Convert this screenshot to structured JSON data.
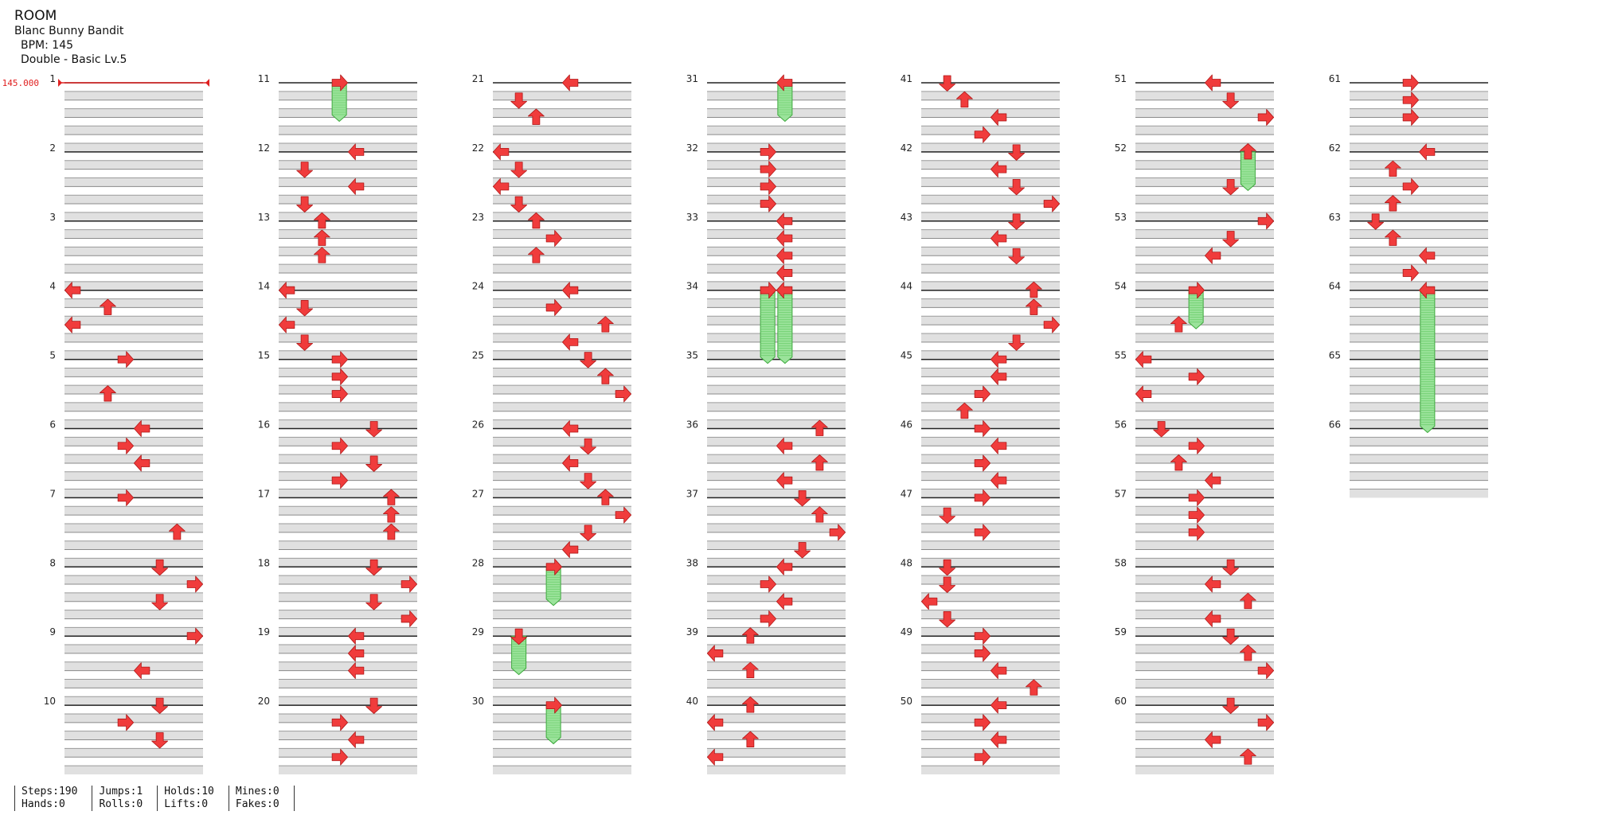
{
  "header": {
    "title": "ROOM",
    "artist": "Blanc Bunny Bandit",
    "bpm": "BPM: 145",
    "difficulty": "Double - Basic Lv.5"
  },
  "bpm_marker": "145.000",
  "stats": {
    "steps": "Steps:190",
    "hands": "Hands:0",
    "jumps": "Jumps:1",
    "rolls": "Rolls:0",
    "holds": "Holds:10",
    "lifts": "Lifts:0",
    "mines": "Mines:0",
    "fakes": "Fakes:0"
  },
  "colors": {
    "arrow": "#f03c3c",
    "arrow_edge": "#b01818",
    "hold_body": "#9be39b",
    "hold_edge": "#3aa83a",
    "row_shade": "#e0e0e0",
    "measure_line": "#222222",
    "bpm_line": "#e02020"
  },
  "measures": [
    {
      "n": "1",
      "notes": []
    },
    {
      "n": "2",
      "notes": []
    },
    {
      "n": "3",
      "notes": []
    },
    {
      "n": "4",
      "notes": [
        {
          "b": 0,
          "c": 0,
          "d": "L"
        },
        {
          "b": 1,
          "c": 2,
          "d": "U"
        },
        {
          "b": 2,
          "c": 0,
          "d": "L"
        }
      ]
    },
    {
      "n": "5",
      "notes": [
        {
          "b": 0,
          "c": 3,
          "d": "R"
        },
        {
          "b": 2,
          "c": 2,
          "d": "U"
        }
      ]
    },
    {
      "n": "6",
      "notes": [
        {
          "b": 0,
          "c": 4,
          "d": "L"
        },
        {
          "b": 1,
          "c": 3,
          "d": "R"
        },
        {
          "b": 2,
          "c": 4,
          "d": "L"
        }
      ]
    },
    {
      "n": "7",
      "notes": [
        {
          "b": 0,
          "c": 3,
          "d": "R"
        },
        {
          "b": 2,
          "c": 6,
          "d": "U"
        }
      ]
    },
    {
      "n": "8",
      "notes": [
        {
          "b": 0,
          "c": 5,
          "d": "D"
        },
        {
          "b": 1,
          "c": 7,
          "d": "R"
        },
        {
          "b": 2,
          "c": 5,
          "d": "D"
        }
      ]
    },
    {
      "n": "9",
      "notes": [
        {
          "b": 0,
          "c": 7,
          "d": "R"
        },
        {
          "b": 2,
          "c": 4,
          "d": "L"
        }
      ]
    },
    {
      "n": "10",
      "notes": [
        {
          "b": 0,
          "c": 5,
          "d": "D"
        },
        {
          "b": 1,
          "c": 3,
          "d": "R"
        },
        {
          "b": 2,
          "c": 5,
          "d": "D"
        }
      ]
    },
    {
      "n": "11",
      "notes": [
        {
          "b": 0,
          "c": 3,
          "d": "R",
          "hold": 2
        }
      ]
    },
    {
      "n": "12",
      "notes": [
        {
          "b": 0,
          "c": 4,
          "d": "L"
        },
        {
          "b": 1,
          "c": 1,
          "d": "D"
        },
        {
          "b": 2,
          "c": 4,
          "d": "L"
        },
        {
          "b": 3,
          "c": 1,
          "d": "D"
        }
      ]
    },
    {
      "n": "13",
      "notes": [
        {
          "b": 0,
          "c": 2,
          "d": "U"
        },
        {
          "b": 1,
          "c": 2,
          "d": "U"
        },
        {
          "b": 2,
          "c": 2,
          "d": "U"
        }
      ]
    },
    {
      "n": "14",
      "notes": [
        {
          "b": 0,
          "c": 0,
          "d": "L"
        },
        {
          "b": 1,
          "c": 1,
          "d": "D"
        },
        {
          "b": 2,
          "c": 0,
          "d": "L"
        },
        {
          "b": 3,
          "c": 1,
          "d": "D"
        }
      ]
    },
    {
      "n": "15",
      "notes": [
        {
          "b": 0,
          "c": 3,
          "d": "R"
        },
        {
          "b": 1,
          "c": 3,
          "d": "R"
        },
        {
          "b": 2,
          "c": 3,
          "d": "R"
        }
      ]
    },
    {
      "n": "16",
      "notes": [
        {
          "b": 0,
          "c": 5,
          "d": "D"
        },
        {
          "b": 1,
          "c": 3,
          "d": "R"
        },
        {
          "b": 2,
          "c": 5,
          "d": "D"
        },
        {
          "b": 3,
          "c": 3,
          "d": "R"
        }
      ]
    },
    {
      "n": "17",
      "notes": [
        {
          "b": 0,
          "c": 6,
          "d": "U"
        },
        {
          "b": 1,
          "c": 6,
          "d": "U"
        },
        {
          "b": 2,
          "c": 6,
          "d": "U"
        }
      ]
    },
    {
      "n": "18",
      "notes": [
        {
          "b": 0,
          "c": 5,
          "d": "D"
        },
        {
          "b": 1,
          "c": 7,
          "d": "R"
        },
        {
          "b": 2,
          "c": 5,
          "d": "D"
        },
        {
          "b": 3,
          "c": 7,
          "d": "R"
        }
      ]
    },
    {
      "n": "19",
      "notes": [
        {
          "b": 0,
          "c": 4,
          "d": "L"
        },
        {
          "b": 1,
          "c": 4,
          "d": "L"
        },
        {
          "b": 2,
          "c": 4,
          "d": "L"
        }
      ]
    },
    {
      "n": "20",
      "notes": [
        {
          "b": 0,
          "c": 5,
          "d": "D"
        },
        {
          "b": 1,
          "c": 3,
          "d": "R"
        },
        {
          "b": 2,
          "c": 4,
          "d": "L"
        },
        {
          "b": 3,
          "c": 3,
          "d": "R"
        }
      ]
    },
    {
      "n": "21",
      "notes": [
        {
          "b": 0,
          "c": 4,
          "d": "L"
        },
        {
          "b": 1,
          "c": 1,
          "d": "D"
        },
        {
          "b": 2,
          "c": 2,
          "d": "U"
        }
      ]
    },
    {
      "n": "22",
      "notes": [
        {
          "b": 0,
          "c": 0,
          "d": "L"
        },
        {
          "b": 1,
          "c": 1,
          "d": "D"
        },
        {
          "b": 2,
          "c": 0,
          "d": "L"
        },
        {
          "b": 3,
          "c": 1,
          "d": "D"
        }
      ]
    },
    {
      "n": "23",
      "notes": [
        {
          "b": 0,
          "c": 2,
          "d": "U"
        },
        {
          "b": 1,
          "c": 3,
          "d": "R"
        },
        {
          "b": 2,
          "c": 2,
          "d": "U"
        }
      ]
    },
    {
      "n": "24",
      "notes": [
        {
          "b": 0,
          "c": 4,
          "d": "L"
        },
        {
          "b": 1,
          "c": 3,
          "d": "R"
        },
        {
          "b": 2,
          "c": 6,
          "d": "U"
        },
        {
          "b": 3,
          "c": 4,
          "d": "L"
        }
      ]
    },
    {
      "n": "25",
      "notes": [
        {
          "b": 0,
          "c": 5,
          "d": "D"
        },
        {
          "b": 1,
          "c": 6,
          "d": "U"
        },
        {
          "b": 2,
          "c": 7,
          "d": "R"
        }
      ]
    },
    {
      "n": "26",
      "notes": [
        {
          "b": 0,
          "c": 4,
          "d": "L"
        },
        {
          "b": 1,
          "c": 5,
          "d": "D"
        },
        {
          "b": 2,
          "c": 4,
          "d": "L"
        },
        {
          "b": 3,
          "c": 5,
          "d": "D"
        }
      ]
    },
    {
      "n": "27",
      "notes": [
        {
          "b": 0,
          "c": 6,
          "d": "U"
        },
        {
          "b": 1,
          "c": 7,
          "d": "R"
        },
        {
          "b": 2,
          "c": 5,
          "d": "D"
        },
        {
          "b": 3,
          "c": 4,
          "d": "L"
        }
      ]
    },
    {
      "n": "28",
      "notes": [
        {
          "b": 0,
          "c": 3,
          "d": "R",
          "hold": 2
        }
      ]
    },
    {
      "n": "29",
      "notes": [
        {
          "b": 0,
          "c": 1,
          "d": "D",
          "hold": 2
        }
      ]
    },
    {
      "n": "30",
      "notes": [
        {
          "b": 0,
          "c": 3,
          "d": "R",
          "hold": 2
        }
      ]
    },
    {
      "n": "31",
      "notes": [
        {
          "b": 0,
          "c": 4,
          "d": "L",
          "hold": 2
        }
      ]
    },
    {
      "n": "32",
      "notes": [
        {
          "b": 0,
          "c": 3,
          "d": "R"
        },
        {
          "b": 1,
          "c": 3,
          "d": "R"
        },
        {
          "b": 2,
          "c": 3,
          "d": "R"
        },
        {
          "b": 3,
          "c": 3,
          "d": "R"
        }
      ]
    },
    {
      "n": "33",
      "notes": [
        {
          "b": 0,
          "c": 4,
          "d": "L"
        },
        {
          "b": 1,
          "c": 4,
          "d": "L"
        },
        {
          "b": 2,
          "c": 4,
          "d": "L"
        },
        {
          "b": 3,
          "c": 4,
          "d": "L"
        }
      ]
    },
    {
      "n": "34",
      "notes": [
        {
          "b": 0,
          "c": 3,
          "d": "R",
          "hold": 4
        },
        {
          "b": 0,
          "c": 4,
          "d": "L",
          "hold": 4
        }
      ]
    },
    {
      "n": "35",
      "notes": []
    },
    {
      "n": "36",
      "notes": [
        {
          "b": 0,
          "c": 6,
          "d": "U"
        },
        {
          "b": 1,
          "c": 4,
          "d": "L"
        },
        {
          "b": 2,
          "c": 6,
          "d": "U"
        },
        {
          "b": 3,
          "c": 4,
          "d": "L"
        }
      ]
    },
    {
      "n": "37",
      "notes": [
        {
          "b": 0,
          "c": 5,
          "d": "D"
        },
        {
          "b": 1,
          "c": 6,
          "d": "U"
        },
        {
          "b": 2,
          "c": 7,
          "d": "R"
        },
        {
          "b": 3,
          "c": 5,
          "d": "D"
        }
      ]
    },
    {
      "n": "38",
      "notes": [
        {
          "b": 0,
          "c": 4,
          "d": "L"
        },
        {
          "b": 1,
          "c": 3,
          "d": "R"
        },
        {
          "b": 2,
          "c": 4,
          "d": "L"
        },
        {
          "b": 3,
          "c": 3,
          "d": "R"
        }
      ]
    },
    {
      "n": "39",
      "notes": [
        {
          "b": 0,
          "c": 2,
          "d": "U"
        },
        {
          "b": 1,
          "c": 0,
          "d": "L"
        },
        {
          "b": 2,
          "c": 2,
          "d": "U"
        }
      ]
    },
    {
      "n": "40",
      "notes": [
        {
          "b": 0,
          "c": 2,
          "d": "U"
        },
        {
          "b": 1,
          "c": 0,
          "d": "L"
        },
        {
          "b": 2,
          "c": 2,
          "d": "U"
        },
        {
          "b": 3,
          "c": 0,
          "d": "L"
        }
      ]
    },
    {
      "n": "41",
      "notes": [
        {
          "b": 0,
          "c": 1,
          "d": "D"
        },
        {
          "b": 1,
          "c": 2,
          "d": "U"
        },
        {
          "b": 2,
          "c": 4,
          "d": "L"
        },
        {
          "b": 3,
          "c": 3,
          "d": "R"
        }
      ]
    },
    {
      "n": "42",
      "notes": [
        {
          "b": 0,
          "c": 5,
          "d": "D"
        },
        {
          "b": 1,
          "c": 4,
          "d": "L"
        },
        {
          "b": 2,
          "c": 5,
          "d": "D"
        },
        {
          "b": 3,
          "c": 7,
          "d": "R"
        }
      ]
    },
    {
      "n": "43",
      "notes": [
        {
          "b": 0,
          "c": 5,
          "d": "D"
        },
        {
          "b": 1,
          "c": 4,
          "d": "L"
        },
        {
          "b": 2,
          "c": 5,
          "d": "D"
        }
      ]
    },
    {
      "n": "44",
      "notes": [
        {
          "b": 0,
          "c": 6,
          "d": "U"
        },
        {
          "b": 1,
          "c": 6,
          "d": "U"
        },
        {
          "b": 2,
          "c": 7,
          "d": "R"
        },
        {
          "b": 3,
          "c": 5,
          "d": "D"
        }
      ]
    },
    {
      "n": "45",
      "notes": [
        {
          "b": 0,
          "c": 4,
          "d": "L"
        },
        {
          "b": 1,
          "c": 4,
          "d": "L"
        },
        {
          "b": 2,
          "c": 3,
          "d": "R"
        },
        {
          "b": 3,
          "c": 2,
          "d": "U"
        }
      ]
    },
    {
      "n": "46",
      "notes": [
        {
          "b": 0,
          "c": 3,
          "d": "R"
        },
        {
          "b": 1,
          "c": 4,
          "d": "L"
        },
        {
          "b": 2,
          "c": 3,
          "d": "R"
        },
        {
          "b": 3,
          "c": 4,
          "d": "L"
        }
      ]
    },
    {
      "n": "47",
      "notes": [
        {
          "b": 0,
          "c": 3,
          "d": "R"
        },
        {
          "b": 1,
          "c": 1,
          "d": "D"
        },
        {
          "b": 2,
          "c": 3,
          "d": "R"
        }
      ]
    },
    {
      "n": "48",
      "notes": [
        {
          "b": 0,
          "c": 1,
          "d": "D"
        },
        {
          "b": 1,
          "c": 1,
          "d": "D"
        },
        {
          "b": 2,
          "c": 0,
          "d": "L"
        },
        {
          "b": 3,
          "c": 1,
          "d": "D"
        }
      ]
    },
    {
      "n": "49",
      "notes": [
        {
          "b": 0,
          "c": 3,
          "d": "R"
        },
        {
          "b": 1,
          "c": 3,
          "d": "R"
        },
        {
          "b": 2,
          "c": 4,
          "d": "L"
        },
        {
          "b": 3,
          "c": 6,
          "d": "U"
        }
      ]
    },
    {
      "n": "50",
      "notes": [
        {
          "b": 0,
          "c": 4,
          "d": "L"
        },
        {
          "b": 1,
          "c": 3,
          "d": "R"
        },
        {
          "b": 2,
          "c": 4,
          "d": "L"
        },
        {
          "b": 3,
          "c": 3,
          "d": "R"
        }
      ]
    },
    {
      "n": "51",
      "notes": [
        {
          "b": 0,
          "c": 4,
          "d": "L"
        },
        {
          "b": 1,
          "c": 5,
          "d": "D"
        },
        {
          "b": 2,
          "c": 7,
          "d": "R"
        }
      ]
    },
    {
      "n": "52",
      "notes": [
        {
          "b": 0,
          "c": 6,
          "d": "U",
          "hold": 2
        },
        {
          "b": 2,
          "c": 5,
          "d": "D"
        }
      ]
    },
    {
      "n": "53",
      "notes": [
        {
          "b": 0,
          "c": 7,
          "d": "R"
        },
        {
          "b": 1,
          "c": 5,
          "d": "D"
        },
        {
          "b": 2,
          "c": 4,
          "d": "L"
        }
      ]
    },
    {
      "n": "54",
      "notes": [
        {
          "b": 0,
          "c": 3,
          "d": "R",
          "hold": 2
        },
        {
          "b": 2,
          "c": 2,
          "d": "U"
        }
      ]
    },
    {
      "n": "55",
      "notes": [
        {
          "b": 0,
          "c": 0,
          "d": "L"
        },
        {
          "b": 1,
          "c": 3,
          "d": "R"
        },
        {
          "b": 2,
          "c": 0,
          "d": "L"
        }
      ]
    },
    {
      "n": "56",
      "notes": [
        {
          "b": 0,
          "c": 1,
          "d": "D"
        },
        {
          "b": 1,
          "c": 3,
          "d": "R"
        },
        {
          "b": 2,
          "c": 2,
          "d": "U"
        },
        {
          "b": 3,
          "c": 4,
          "d": "L"
        }
      ]
    },
    {
      "n": "57",
      "notes": [
        {
          "b": 0,
          "c": 3,
          "d": "R"
        },
        {
          "b": 1,
          "c": 3,
          "d": "R"
        },
        {
          "b": 2,
          "c": 3,
          "d": "R"
        }
      ]
    },
    {
      "n": "58",
      "notes": [
        {
          "b": 0,
          "c": 5,
          "d": "D"
        },
        {
          "b": 1,
          "c": 4,
          "d": "L"
        },
        {
          "b": 2,
          "c": 6,
          "d": "U"
        },
        {
          "b": 3,
          "c": 4,
          "d": "L"
        }
      ]
    },
    {
      "n": "59",
      "notes": [
        {
          "b": 0,
          "c": 5,
          "d": "D"
        },
        {
          "b": 1,
          "c": 6,
          "d": "U"
        },
        {
          "b": 2,
          "c": 7,
          "d": "R"
        }
      ]
    },
    {
      "n": "60",
      "notes": [
        {
          "b": 0,
          "c": 5,
          "d": "D"
        },
        {
          "b": 1,
          "c": 7,
          "d": "R"
        },
        {
          "b": 2,
          "c": 4,
          "d": "L"
        },
        {
          "b": 3,
          "c": 6,
          "d": "U"
        }
      ]
    },
    {
      "n": "61",
      "notes": [
        {
          "b": 0,
          "c": 3,
          "d": "R"
        },
        {
          "b": 1,
          "c": 3,
          "d": "R"
        },
        {
          "b": 2,
          "c": 3,
          "d": "R"
        }
      ]
    },
    {
      "n": "62",
      "notes": [
        {
          "b": 0,
          "c": 4,
          "d": "L"
        },
        {
          "b": 1,
          "c": 2,
          "d": "U"
        },
        {
          "b": 2,
          "c": 3,
          "d": "R"
        },
        {
          "b": 3,
          "c": 2,
          "d": "U"
        }
      ]
    },
    {
      "n": "63",
      "notes": [
        {
          "b": 0,
          "c": 1,
          "d": "D"
        },
        {
          "b": 1,
          "c": 2,
          "d": "U"
        },
        {
          "b": 2,
          "c": 4,
          "d": "L"
        },
        {
          "b": 3,
          "c": 3,
          "d": "R"
        }
      ]
    },
    {
      "n": "64",
      "notes": [
        {
          "b": 0,
          "c": 4,
          "d": "L",
          "hold": 8
        }
      ]
    },
    {
      "n": "65",
      "notes": []
    },
    {
      "n": "66",
      "notes": []
    }
  ]
}
